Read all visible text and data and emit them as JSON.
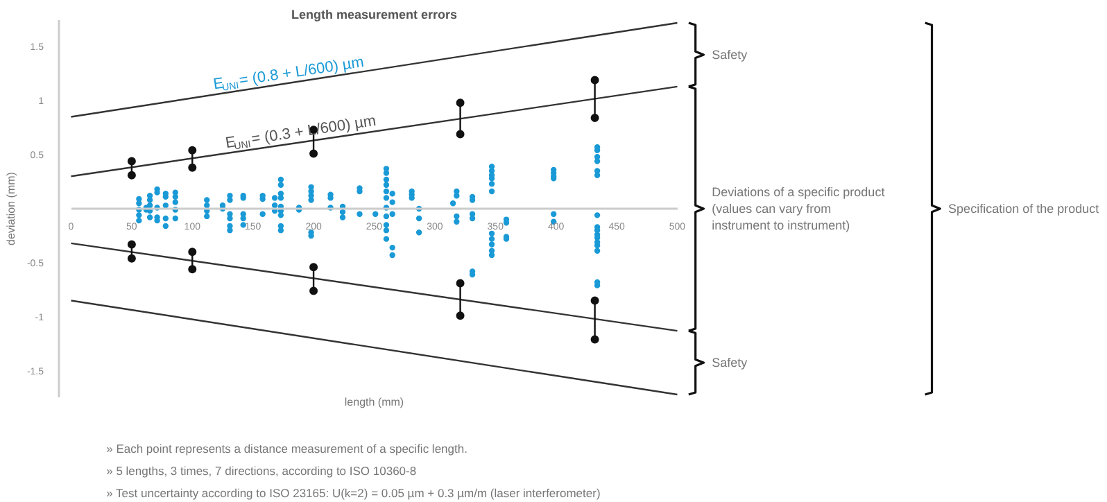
{
  "chart_data": {
    "type": "scatter",
    "title": "Length measurement errors",
    "xlabel": "length (mm)",
    "ylabel": "deviation (mm)",
    "xlim": [
      0,
      500
    ],
    "ylim": [
      -1.75,
      1.75
    ],
    "xticks": [
      0,
      50,
      100,
      150,
      200,
      250,
      300,
      350,
      400,
      450,
      500
    ],
    "yticks": [
      -1.5,
      -1,
      -0.5,
      0.5,
      1,
      1.5
    ],
    "series": [
      {
        "type": "line",
        "name": "E$_{UNI}$ = (0.8 + L/600) µm",
        "color": "#333333",
        "marker": "none",
        "x": [
          0,
          500
        ],
        "values": [
          0.85,
          1.72
        ]
      },
      {
        "type": "line",
        "name": "E$_{UNI}$ = (0.3 + L/600) µm",
        "color": "#333333",
        "marker": "none",
        "x": [
          0,
          500
        ],
        "values": [
          0.3,
          1.13
        ]
      },
      {
        "type": "line",
        "color": "#333333",
        "marker": "none",
        "x": [
          0,
          500
        ],
        "values": [
          -0.32,
          -1.13
        ]
      },
      {
        "type": "line",
        "color": "#333333",
        "marker": "none",
        "x": [
          0,
          500
        ],
        "values": [
          -0.85,
          -1.72
        ]
      },
      {
        "type": "line",
        "color": "#111111",
        "marker": "circle",
        "x": [
          50,
          50,
          75,
          100,
          100,
          150,
          200,
          200,
          260,
          321,
          321,
          376,
          432,
          432
        ],
        "values": [
          0.44,
          0.31,
          null,
          0.54,
          0.38,
          null,
          0.73,
          0.51,
          null,
          0.98,
          0.69,
          null,
          1.19,
          0.84
        ]
      },
      {
        "type": "line",
        "color": "#111111",
        "marker": "circle",
        "x": [
          50,
          50,
          75,
          100,
          100,
          150,
          200,
          200,
          260,
          321,
          321,
          376,
          432,
          432
        ],
        "values": [
          -0.33,
          -0.46,
          null,
          -0.4,
          -0.56,
          null,
          -0.54,
          -0.76,
          null,
          -0.69,
          -0.99,
          null,
          -0.85,
          -1.21
        ]
      },
      {
        "color": "#1a9ad6",
        "marker": "circle",
        "x": [
          56,
          56,
          56,
          56,
          56,
          62,
          62,
          65,
          65,
          65,
          65,
          65,
          71,
          71,
          71,
          71,
          71,
          78,
          78,
          78,
          78,
          78,
          86,
          86,
          86,
          86,
          86,
          112,
          112,
          112,
          112,
          125,
          125,
          131,
          131,
          131,
          131,
          131,
          131,
          142,
          142,
          142,
          142,
          142,
          158,
          158,
          158,
          168,
          168,
          168,
          173,
          173,
          173,
          173,
          173,
          173,
          173,
          173,
          173,
          188,
          188,
          198,
          198,
          198,
          198,
          198,
          198,
          214,
          214,
          214,
          224,
          224,
          224,
          238,
          238,
          238,
          251,
          260,
          260,
          260,
          260,
          260,
          260,
          260,
          260,
          260,
          260,
          260,
          265,
          265,
          265,
          265,
          265,
          281,
          281,
          281,
          287,
          287,
          287,
          315,
          318,
          318,
          318,
          318,
          331,
          331,
          331,
          331,
          331,
          331,
          347,
          347,
          347,
          347,
          347,
          347,
          347,
          347,
          347,
          347,
          347,
          359,
          359,
          359,
          359,
          398,
          398,
          398,
          398,
          398,
          398,
          434,
          434,
          434,
          434,
          434,
          434,
          434,
          434,
          434,
          434,
          434,
          434,
          434,
          434,
          434,
          434
        ],
        "values": [
          0.09,
          0.05,
          -0.01,
          -0.06,
          -0.11,
          0.01,
          -0.01,
          0.12,
          0.08,
          0.03,
          -0.02,
          -0.08,
          0.18,
          0.15,
          0.01,
          -0.08,
          -0.11,
          0.14,
          0.11,
          0.03,
          -0.09,
          -0.16,
          0.15,
          0.11,
          0.06,
          -0.01,
          -0.09,
          0.08,
          0.03,
          -0.02,
          -0.07,
          0.03,
          0.0,
          0.12,
          0.08,
          -0.05,
          -0.09,
          -0.16,
          -0.2,
          0.12,
          0.1,
          -0.05,
          -0.09,
          -0.15,
          0.12,
          0.09,
          -0.05,
          0.1,
          0.03,
          -0.02,
          0.27,
          0.22,
          0.14,
          0.1,
          0.02,
          -0.02,
          -0.06,
          -0.16,
          -0.2,
          0.01,
          -0.01,
          0.2,
          0.16,
          0.12,
          0.08,
          -0.22,
          -0.25,
          0.13,
          0.1,
          0.01,
          0.02,
          -0.03,
          -0.08,
          0.19,
          0.16,
          -0.05,
          -0.05,
          0.37,
          0.33,
          0.27,
          0.22,
          0.16,
          0.1,
          0.01,
          -0.07,
          -0.15,
          -0.2,
          -0.28,
          0.14,
          0.06,
          -0.05,
          -0.36,
          -0.43,
          0.16,
          0.13,
          0.1,
          0.0,
          -0.09,
          -0.22,
          0.05,
          0.16,
          0.12,
          -0.07,
          -0.12,
          0.11,
          0.08,
          -0.05,
          -0.09,
          -0.58,
          -0.61,
          0.39,
          0.35,
          0.31,
          0.28,
          0.23,
          0.16,
          -0.23,
          -0.28,
          -0.33,
          -0.39,
          -0.43,
          -0.1,
          -0.13,
          -0.26,
          -0.28,
          0.36,
          0.33,
          0.3,
          0.28,
          -0.05,
          -0.12,
          0.57,
          0.54,
          0.48,
          0.44,
          0.35,
          0.31,
          -0.06,
          -0.17,
          -0.2,
          -0.24,
          -0.27,
          -0.31,
          -0.34,
          -0.39,
          -0.68,
          -0.71
        ]
      }
    ],
    "annotations": [
      "Safety",
      "Deviations of a specific product\n(values can vary from\ninstrument to instrument)",
      "Safety",
      "Specification of the product",
      "»   Each point represents a distance measurement of a specific length.",
      "»   5 lengths, 3 times, 7 directions, according to ISO 10360-8",
      "»   Test uncertainty according to ISO 23165: U(k=2) = 0.05 µm + 0.3 µm/m (laser interferometer)"
    ]
  }
}
